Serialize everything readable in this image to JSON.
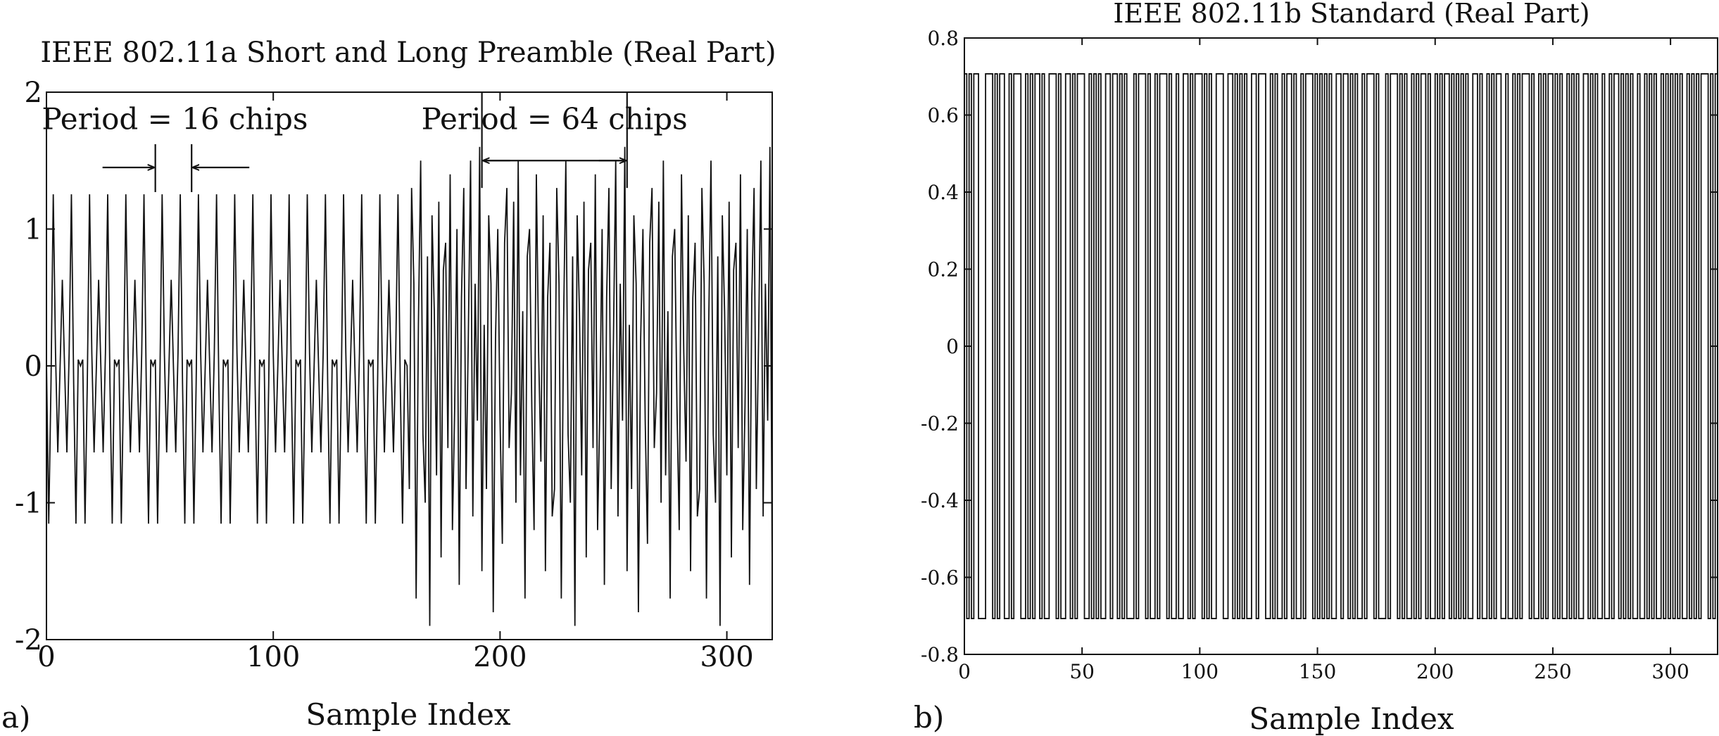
{
  "chart_data": [
    {
      "type": "line",
      "panel_label": "a)",
      "title": "IEEE 802.11a Short and Long Preamble (Real Part)",
      "xlabel": "Sample Index",
      "ylabel": "",
      "xlim": [
        0,
        320
      ],
      "ylim": [
        -2,
        2
      ],
      "xticks": [
        0,
        100,
        200,
        300
      ],
      "xtick_labels": [
        "0",
        "100",
        "200",
        "300"
      ],
      "yticks": [
        -2,
        -1,
        0,
        1,
        2
      ],
      "ytick_labels": [
        "-2",
        "-1",
        "0",
        "1",
        "2"
      ],
      "grid": false,
      "legend": "none",
      "short_preamble": {
        "period": 16,
        "x_range": [
          0,
          160
        ],
        "period_values": [
          0.046,
          -1.153,
          -0.132,
          1.254,
          0.092,
          -0.632,
          -0.013,
          0.629,
          -0.013,
          -0.632,
          0.092,
          1.254,
          -0.132,
          -1.153,
          0.046,
          0.0
        ]
      },
      "long_preamble": {
        "x_range": [
          160,
          320
        ],
        "cyclic_prefix_length": 32,
        "period": 64,
        "values": [
          -1.5,
          0.3,
          -0.9,
          1.1,
          0.6,
          -1.8,
          0.2,
          1.0,
          -0.4,
          -1.3,
          0.9,
          1.3,
          -0.6,
          -0.2,
          1.2,
          -1.0,
          1.5,
          -0.8,
          0.4,
          -1.7,
          0.8,
          1.0,
          -0.3,
          -1.2,
          1.4,
          0.1,
          -0.7,
          1.1,
          -1.5,
          0.5,
          0.9,
          -1.1,
          -0.9,
          1.3,
          0.6,
          -1.7,
          0.3,
          1.5,
          -0.5,
          -1.0,
          0.8,
          -1.9,
          1.1,
          0.4,
          -0.8,
          1.2,
          -1.4,
          0.7,
          0.9,
          -0.6,
          1.4,
          -1.2,
          -0.3,
          1.0,
          -1.6,
          0.5,
          1.3,
          -0.9,
          0.2,
          1.5,
          -1.1,
          0.6,
          -0.4,
          1.6
        ]
      },
      "annotations": [
        {
          "text": "Period = 16 chips",
          "x_start": 48,
          "x_end": 64
        },
        {
          "text": "Period = 64 chips",
          "x_start": 192,
          "x_end": 256
        }
      ]
    },
    {
      "type": "line",
      "panel_label": "b)",
      "title": "IEEE 802.11b Standard (Real Part)",
      "xlabel": "Sample Index",
      "ylabel": "",
      "xlim": [
        0,
        320
      ],
      "ylim": [
        -0.8,
        0.8
      ],
      "xticks": [
        0,
        50,
        100,
        150,
        200,
        250,
        300
      ],
      "xtick_labels": [
        "0",
        "50",
        "100",
        "150",
        "200",
        "250",
        "300"
      ],
      "yticks": [
        -0.8,
        -0.6,
        -0.4,
        -0.2,
        0,
        0.2,
        0.4,
        0.6,
        0.8
      ],
      "ytick_labels": [
        "-0.8",
        "-0.6",
        "-0.4",
        "-0.2",
        "0",
        "0.2",
        "0.4",
        "0.6",
        "0.8"
      ],
      "grid": false,
      "legend": "none",
      "step": true,
      "amplitude": 0.707,
      "chip_sign_pattern": "+-+-++---+++-+-++--+-+++--+-+-++-+--+++-+--++-+-+++--+-+-+--++-++-+-+---+-+++-+--+-+++-+--+--++-+-+++-+-+--+++--++-+-+-+--++-+++--+-+--+-++-+--+-+++-+-+-+-+--++-++-+-+--+-+++-+---+-+++-+-+--+-+-++-+--+-+-++-+-+-+-+--++-+--+-+-++--+--+-+-+++-+--+-+-++-+-+--+-+-+--++-+-+--+--+-++-+-+-+--+--+-+-+--+-+-+-+-+--+-+-+-+++-+-++"
    }
  ]
}
